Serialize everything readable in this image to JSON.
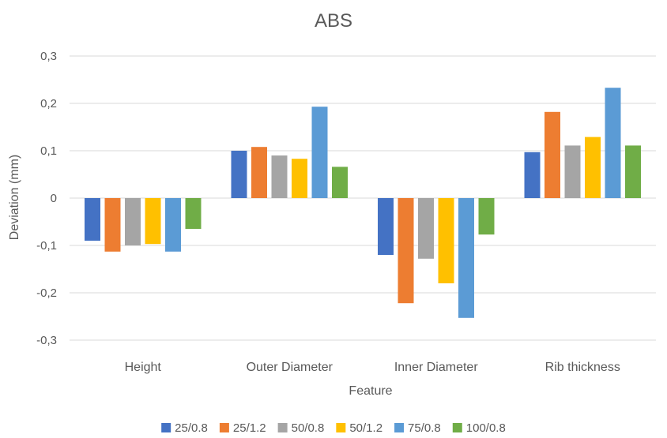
{
  "chart_data": {
    "type": "bar",
    "title": "ABS",
    "xlabel": "Feature",
    "ylabel": "Deviation (mm)",
    "ylim": [
      -0.3,
      0.3
    ],
    "yticks": [
      {
        "value": 0.3,
        "label": "0,3"
      },
      {
        "value": 0.2,
        "label": "0,2"
      },
      {
        "value": 0.1,
        "label": "0,1"
      },
      {
        "value": 0,
        "label": "0"
      },
      {
        "value": -0.1,
        "label": "-0,1"
      },
      {
        "value": -0.2,
        "label": "-0,2"
      },
      {
        "value": -0.3,
        "label": "-0,3"
      }
    ],
    "grid": true,
    "legend_position": "bottom",
    "categories": [
      "Height",
      "Outer Diameter",
      "Inner Diameter",
      "Rib thickness"
    ],
    "series": [
      {
        "name": "25/0.8",
        "color": "#4472C4",
        "values": [
          -0.09,
          0.1,
          -0.12,
          0.097
        ]
      },
      {
        "name": "25/1.2",
        "color": "#ED7D31",
        "values": [
          -0.113,
          0.108,
          -0.222,
          0.182
        ]
      },
      {
        "name": "50/0.8",
        "color": "#A5A5A5",
        "values": [
          -0.1,
          0.09,
          -0.128,
          0.111
        ]
      },
      {
        "name": "50/1.2",
        "color": "#FFC000",
        "values": [
          -0.097,
          0.083,
          -0.18,
          0.129
        ]
      },
      {
        "name": "75/0.8",
        "color": "#5B9BD5",
        "values": [
          -0.113,
          0.193,
          -0.253,
          0.233
        ]
      },
      {
        "name": "100/0.8",
        "color": "#70AD47",
        "values": [
          -0.065,
          0.066,
          -0.077,
          0.111
        ]
      }
    ]
  }
}
